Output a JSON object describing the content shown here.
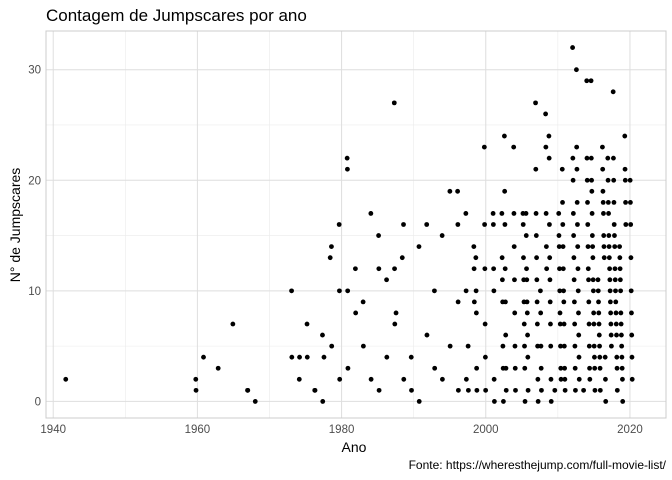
{
  "chart_data": {
    "type": "scatter",
    "title": "Contagem de Jumpscares por ano",
    "caption": "Fonte: https://wheresthejump.com/full-movie-list/",
    "xlabel": "Ano",
    "ylabel": "N° de Jumpscares",
    "xlim": [
      1939,
      2025
    ],
    "ylim": [
      -1.5,
      33.5
    ],
    "xticks": [
      1940,
      1960,
      1980,
      2000,
      2020
    ],
    "yticks": [
      0,
      10,
      20,
      30
    ],
    "grid": true,
    "point_color": "#000000",
    "x": [
      1942,
      1960,
      1960,
      1961,
      1963,
      1965,
      1967,
      1967,
      1968,
      1973,
      1973,
      1974,
      1974,
      1975,
      1975,
      1976,
      1976,
      1977,
      1977,
      1978,
      1978,
      1979,
      1979,
      1980,
      1980,
      1980,
      1981,
      1981,
      1981,
      1981,
      1982,
      1982,
      1983,
      1983,
      1984,
      1984,
      1985,
      1985,
      1985,
      1986,
      1986,
      1987,
      1987,
      1987,
      1988,
      1988,
      1989,
      1989,
      1990,
      1990,
      1991,
      1991,
      1992,
      1992,
      1993,
      1993,
      1994,
      1994,
      1995,
      1995,
      1996,
      1996,
      1996,
      1996,
      1997,
      1997,
      1997,
      1998,
      1998,
      1998,
      1998,
      1998,
      1999,
      1999,
      1999,
      1999,
      1999,
      2000,
      2000,
      2000,
      2000,
      2000,
      2000,
      2001,
      2001,
      2001,
      2001,
      2001,
      2001,
      2002,
      2002,
      2002,
      2002,
      2002,
      2002,
      2002,
      2003,
      2003,
      2003,
      2003,
      2003,
      2003,
      2003,
      2003,
      2004,
      2004,
      2004,
      2004,
      2004,
      2004,
      2004,
      2004,
      2005,
      2005,
      2005,
      2005,
      2005,
      2005,
      2005,
      2005,
      2005,
      2006,
      2006,
      2006,
      2006,
      2006,
      2006,
      2006,
      2006,
      2006,
      2007,
      2007,
      2007,
      2007,
      2007,
      2007,
      2007,
      2007,
      2007,
      2007,
      2007,
      2008,
      2008,
      2008,
      2008,
      2008,
      2008,
      2008,
      2008,
      2008,
      2008,
      2009,
      2009,
      2009,
      2009,
      2009,
      2009,
      2009,
      2009,
      2009,
      2009,
      2010,
      2010,
      2010,
      2010,
      2010,
      2010,
      2010,
      2010,
      2010,
      2010,
      2010,
      2011,
      2011,
      2011,
      2011,
      2011,
      2011,
      2011,
      2011,
      2011,
      2011,
      2011,
      2011,
      2012,
      2012,
      2012,
      2012,
      2012,
      2012,
      2012,
      2012,
      2012,
      2012,
      2012,
      2012,
      2013,
      2013,
      2013,
      2013,
      2013,
      2013,
      2013,
      2013,
      2013,
      2013,
      2013,
      2013,
      2014,
      2014,
      2014,
      2014,
      2014,
      2014,
      2014,
      2014,
      2014,
      2014,
      2014,
      2014,
      2014,
      2014,
      2015,
      2015,
      2015,
      2015,
      2015,
      2015,
      2015,
      2015,
      2015,
      2015,
      2015,
      2015,
      2015,
      2015,
      2015,
      2015,
      2016,
      2016,
      2016,
      2016,
      2016,
      2016,
      2016,
      2016,
      2016,
      2016,
      2016,
      2016,
      2016,
      2016,
      2016,
      2016,
      2016,
      2016,
      2017,
      2017,
      2017,
      2017,
      2017,
      2017,
      2017,
      2017,
      2017,
      2017,
      2017,
      2017,
      2017,
      2017,
      2017,
      2017,
      2017,
      2017,
      2018,
      2018,
      2018,
      2018,
      2018,
      2018,
      2018,
      2018,
      2018,
      2018,
      2018,
      2018,
      2018,
      2018,
      2018,
      2018,
      2018,
      2019,
      2019,
      2019,
      2019,
      2019,
      2019,
      2019,
      2019,
      2019,
      2019,
      2019,
      2019,
      2019,
      2019,
      2019,
      2019,
      2019,
      2019,
      2020,
      2020,
      2020,
      2020,
      2020,
      2020,
      2020,
      2020,
      2020
    ],
    "y": [
      2,
      2,
      1,
      4,
      3,
      7,
      1,
      1,
      0,
      10,
      4,
      2,
      4,
      7,
      4,
      1,
      1,
      6,
      0,
      13,
      4,
      14,
      5,
      16,
      10,
      2,
      22,
      21,
      10,
      3,
      12,
      8,
      9,
      5,
      17,
      2,
      15,
      12,
      1,
      11,
      4,
      27,
      12,
      7,
      13,
      8,
      16,
      2,
      4,
      1,
      14,
      0,
      16,
      6,
      10,
      3,
      15,
      2,
      19,
      5,
      19,
      16,
      9,
      1,
      17,
      10,
      2,
      14,
      12,
      9,
      5,
      1,
      13,
      10,
      8,
      3,
      1,
      23,
      16,
      12,
      7,
      4,
      1,
      17,
      16,
      12,
      10,
      2,
      0,
      17,
      13,
      11,
      9,
      5,
      3,
      0,
      24,
      19,
      16,
      12,
      9,
      6,
      3,
      1,
      23,
      17,
      14,
      11,
      8,
      5,
      3,
      1,
      17,
      16,
      13,
      11,
      9,
      7,
      5,
      3,
      0,
      17,
      15,
      12,
      11,
      9,
      8,
      6,
      4,
      1,
      27,
      21,
      17,
      15,
      13,
      11,
      9,
      7,
      5,
      2,
      0,
      26,
      23,
      17,
      14,
      12,
      10,
      8,
      5,
      3,
      1,
      24,
      22,
      16,
      13,
      11,
      9,
      7,
      5,
      2,
      0,
      17,
      15,
      14,
      12,
      10,
      8,
      7,
      5,
      3,
      2,
      1,
      21,
      18,
      16,
      14,
      12,
      10,
      9,
      7,
      5,
      3,
      2,
      1,
      32,
      22,
      20,
      17,
      15,
      13,
      11,
      9,
      7,
      5,
      3,
      1,
      30,
      23,
      21,
      18,
      16,
      14,
      12,
      10,
      8,
      6,
      4,
      2,
      29,
      22,
      20,
      18,
      16,
      14,
      12,
      11,
      9,
      7,
      5,
      3,
      2,
      1,
      29,
      22,
      20,
      19,
      17,
      15,
      14,
      13,
      11,
      10,
      8,
      7,
      5,
      4,
      3,
      1,
      23,
      21,
      19,
      18,
      17,
      15,
      14,
      13,
      11,
      10,
      9,
      8,
      7,
      6,
      5,
      4,
      3,
      1,
      22,
      20,
      18,
      17,
      15,
      14,
      13,
      12,
      11,
      10,
      9,
      8,
      7,
      6,
      5,
      4,
      2,
      0,
      28,
      22,
      20,
      18,
      16,
      15,
      14,
      12,
      11,
      10,
      9,
      8,
      7,
      6,
      4,
      3,
      1,
      24,
      21,
      20,
      18,
      16,
      14,
      13,
      12,
      11,
      10,
      8,
      7,
      6,
      5,
      4,
      3,
      2,
      0,
      20,
      18,
      16,
      13,
      10,
      8,
      6,
      4,
      2
    ]
  }
}
